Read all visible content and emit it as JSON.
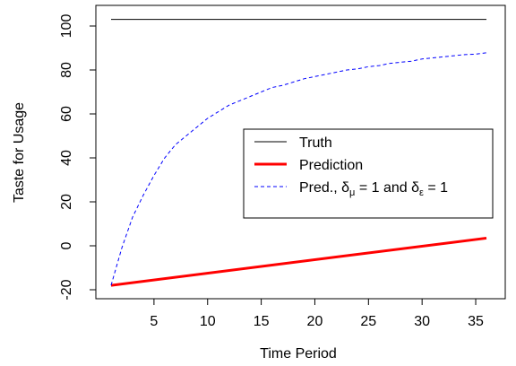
{
  "chart_data": {
    "type": "line",
    "title": "",
    "xlabel": "Time Period",
    "ylabel": "Taste for Usage",
    "xlim": [
      1,
      36
    ],
    "ylim": [
      -20,
      103
    ],
    "x_ticks": [
      5,
      10,
      15,
      20,
      25,
      30,
      35
    ],
    "y_ticks": [
      -20,
      0,
      20,
      40,
      60,
      80,
      100
    ],
    "grid": false,
    "legend_position": "center-right",
    "series": [
      {
        "name": "Truth",
        "color": "#000000",
        "style": "solid",
        "x": [
          1,
          36
        ],
        "y": [
          103,
          103
        ]
      },
      {
        "name": "Prediction",
        "color": "#ff0000",
        "style": "solid",
        "x": [
          1,
          36
        ],
        "y": [
          -18,
          3.5
        ]
      },
      {
        "name": "Pred., δμ = 1 and δε = 1",
        "color": "#0000ff",
        "style": "dashed",
        "x": [
          1,
          2,
          3,
          4,
          5,
          6,
          7,
          8,
          9,
          10,
          11,
          12,
          13,
          14,
          15,
          16,
          17,
          18,
          19,
          20,
          21,
          22,
          23,
          24,
          25,
          26,
          27,
          28,
          29,
          30,
          31,
          32,
          33,
          34,
          35,
          36
        ],
        "y": [
          -18,
          -1,
          13,
          23,
          32,
          40,
          46,
          50,
          54,
          58,
          61,
          64,
          66,
          68,
          70,
          72,
          73,
          74.5,
          76,
          77,
          78,
          79,
          80,
          80.5,
          81.5,
          82,
          83,
          83.5,
          84,
          85,
          85.5,
          86,
          86.5,
          87,
          87.2,
          87.8
        ]
      }
    ],
    "legend": {
      "entries": [
        {
          "label": "Truth"
        },
        {
          "label": "Prediction"
        },
        {
          "label_prefix": "Pred., ",
          "delta1": "δ",
          "sub1": "μ",
          "eq1": " = 1 and ",
          "delta2": "δ",
          "sub2": "ε",
          "eq2": " = 1"
        }
      ]
    }
  }
}
